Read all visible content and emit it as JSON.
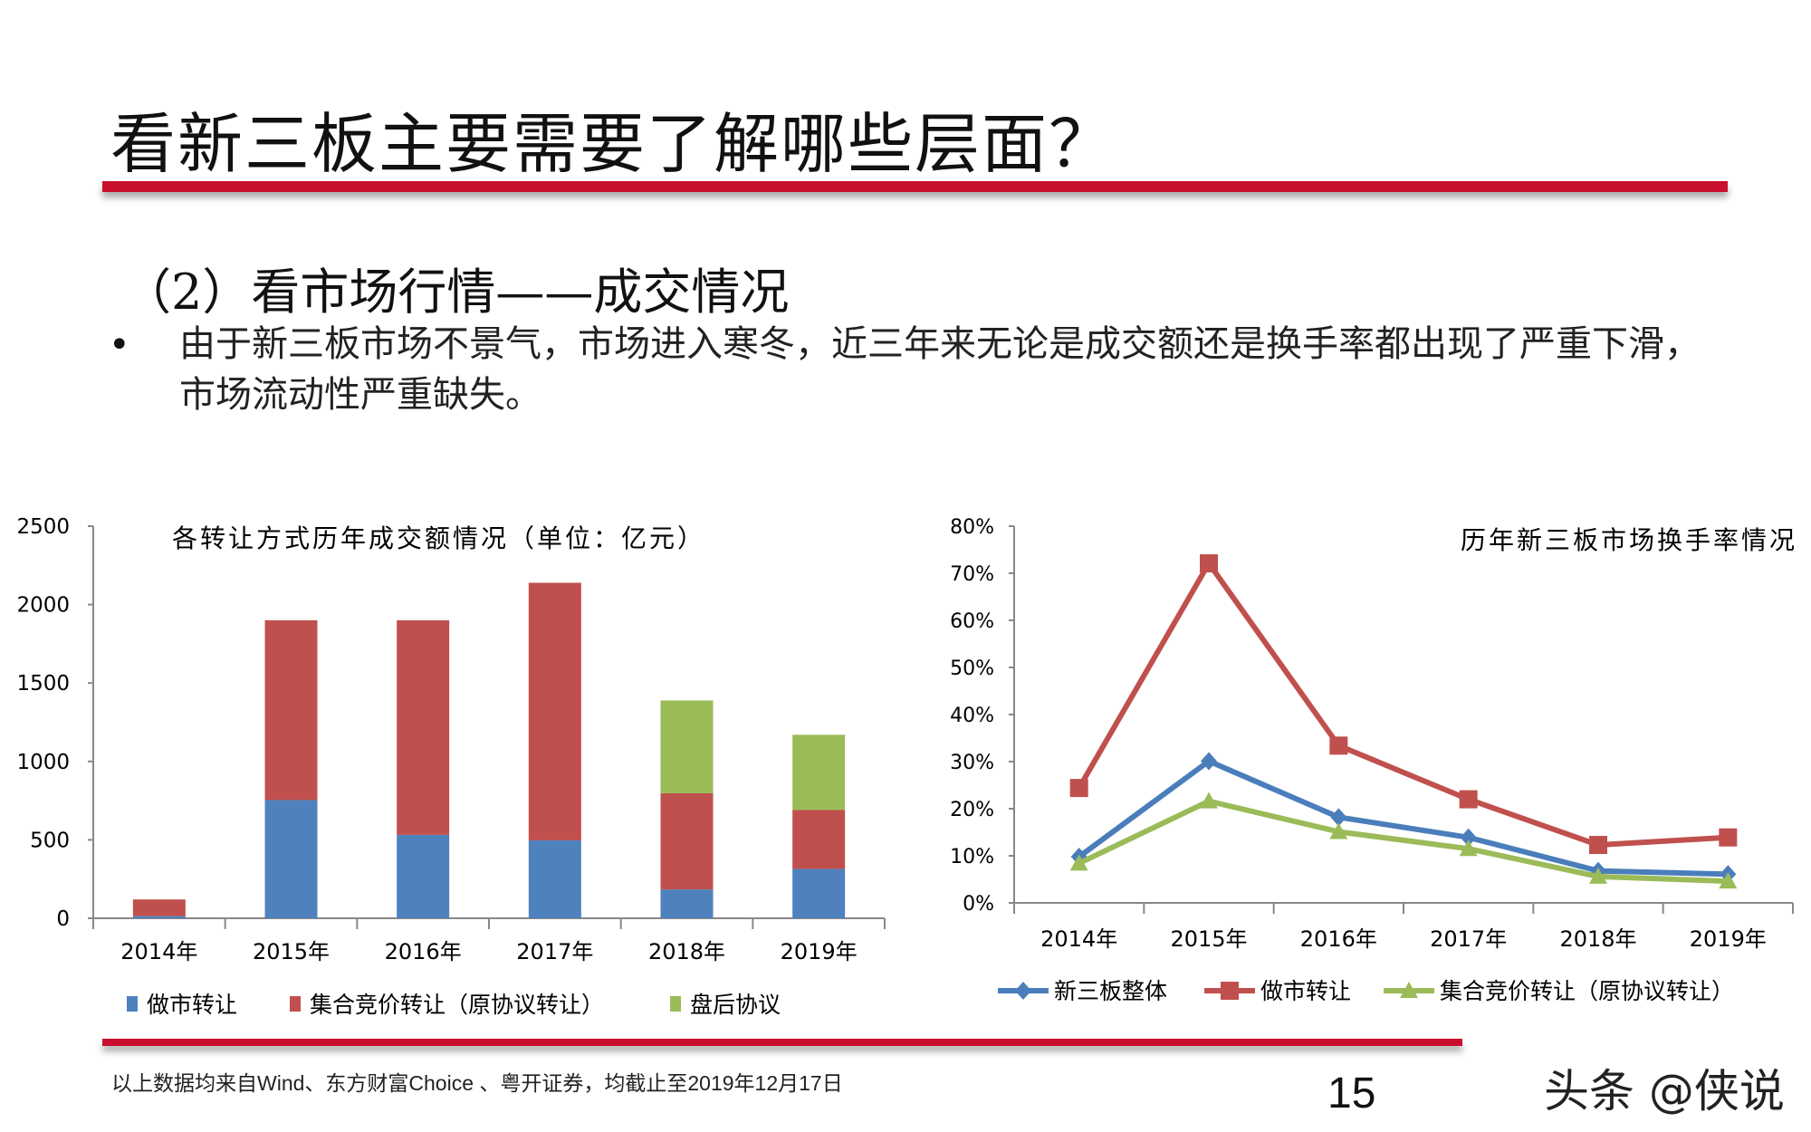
{
  "slide": {
    "title": "看新三板主要需要了解哪些层面？",
    "subtitle": "（2）看市场行情——成交情况",
    "bullet_marker": "•",
    "bullet_text": "由于新三板市场不景气，市场进入寒冬，近三年来无论是成交额还是换手率都出现了严重下滑，市场流动性严重缺失。",
    "footnote": "以上数据均来自Wind、东方财富Choice 、粤开证券，均截止至2019年12月17日",
    "page_number": "15",
    "watermark": "头条 @侠说",
    "accent_color": "#c8102e"
  },
  "chart_data": [
    {
      "type": "bar",
      "stacked": true,
      "title": "各转让方式历年成交额情况（单位：亿元）",
      "categories": [
        "2014年",
        "2015年",
        "2016年",
        "2017年",
        "2018年",
        "2019年"
      ],
      "ylim": [
        0,
        2500
      ],
      "yticks": [
        "0",
        "500",
        "1000",
        "1500",
        "2000",
        "2500"
      ],
      "grid": false,
      "legend_position": "bottom",
      "series": [
        {
          "name": "做市转让",
          "color": "#4f81bd",
          "values": [
            14,
            754,
            532,
            497,
            184,
            315
          ]
        },
        {
          "name": "集合竞价转让（原协议转让）",
          "color": "#c0504d",
          "values": [
            106,
            1146,
            1368,
            1642,
            613,
            375
          ]
        },
        {
          "name": "盘后协议",
          "color": "#9bbb59",
          "values": [
            0,
            0,
            0,
            0,
            592,
            480
          ]
        }
      ]
    },
    {
      "type": "line",
      "title": "历年新三板市场换手率情况",
      "categories": [
        "2014年",
        "2015年",
        "2016年",
        "2017年",
        "2018年",
        "2019年"
      ],
      "ylim": [
        0,
        80
      ],
      "yticks": [
        "0%",
        "10%",
        "20%",
        "30%",
        "40%",
        "50%",
        "60%",
        "70%",
        "80%"
      ],
      "grid": false,
      "legend_position": "bottom",
      "series": [
        {
          "name": "新三板整体",
          "color": "#4a7ebb",
          "marker": "diamond",
          "values": [
            9.8,
            30.1,
            18.2,
            13.9,
            6.8,
            6.1
          ]
        },
        {
          "name": "做市转让",
          "color": "#c0504d",
          "marker": "square",
          "values": [
            24.4,
            72.1,
            33.4,
            22.0,
            12.3,
            13.9
          ]
        },
        {
          "name": "集合竞价转让（原协议转让）",
          "color": "#9bbb59",
          "marker": "triangle",
          "values": [
            8.4,
            21.6,
            15.1,
            11.5,
            5.6,
            4.6
          ]
        }
      ]
    }
  ]
}
